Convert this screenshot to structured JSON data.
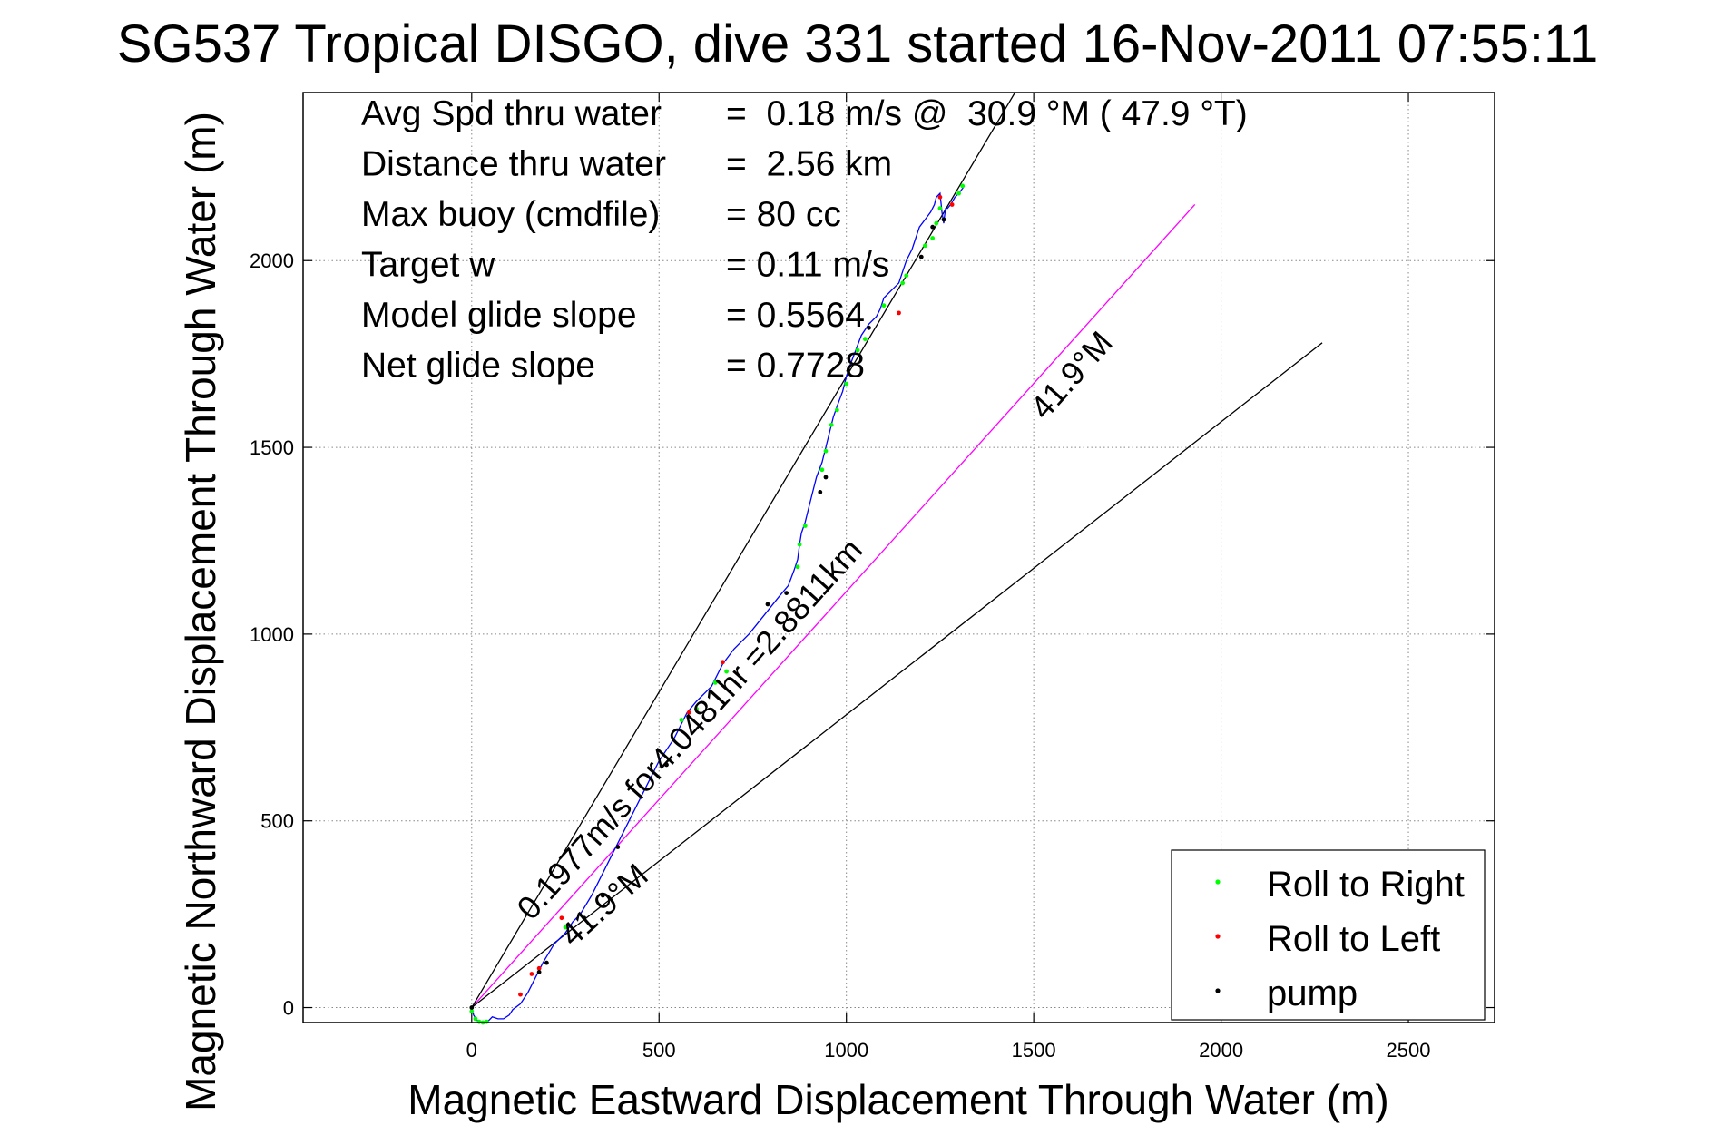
{
  "chart_data": {
    "type": "line",
    "title": "SG537 Tropical DISGO, dive 331 started 16-Nov-2011 07:55:11",
    "xlabel": "Magnetic Eastward Displacement Through Water (m)",
    "ylabel": "Magnetic Northward Displacement Through Water (m)",
    "xlim": [
      -450,
      2730
    ],
    "ylim": [
      -40,
      2450
    ],
    "grid": true,
    "xticks": [
      0,
      500,
      1000,
      1500,
      2000,
      2500
    ],
    "xtick_labels": [
      "0",
      "500",
      "1000",
      "1500",
      "2000",
      "2500"
    ],
    "yticks": [
      0,
      500,
      1000,
      1500,
      2000
    ],
    "ytick_labels": [
      "0",
      "500",
      "1000",
      "1500",
      "2000"
    ],
    "stats": [
      {
        "label": "Avg Spd thru water",
        "value": "=  0.18 m/s @  30.9 °M ( 47.9 °T)"
      },
      {
        "label": "Distance thru water",
        "value": "=  2.56 km"
      },
      {
        "label": "Max buoy (cmdfile)",
        "value": "= 80 cc"
      },
      {
        "label": "Target w",
        "value": "= 0.11 m/s"
      },
      {
        "label": "Model glide slope",
        "value": "= 0.5564"
      },
      {
        "label": "Net glide slope",
        "value": "= 0.7728"
      }
    ],
    "reference_lines": [
      {
        "x": [
          0,
          1930
        ],
        "y": [
          0,
          2150
        ],
        "color": "#ff00ff"
      },
      {
        "x": [
          0,
          1450
        ],
        "y": [
          0,
          2450
        ],
        "color": "#000000"
      },
      {
        "x": [
          0,
          2270
        ],
        "y": [
          0,
          1780
        ],
        "color": "#000000"
      }
    ],
    "annotations": [
      {
        "text": "0.1977m/s for4.0481hr =2.8811km",
        "x": 160,
        "y": 230,
        "angle": 48.1
      },
      {
        "text": "41.9°M",
        "x": 270,
        "y": 160,
        "angle": 41.9
      },
      {
        "text": "41.9°M",
        "x": 1530,
        "y": 1570,
        "angle": 48.1
      }
    ],
    "track": {
      "color": "#0000ff",
      "x": [
        0,
        5,
        15,
        30,
        45,
        55,
        70,
        85,
        100,
        110,
        130,
        150,
        170,
        190,
        220,
        250,
        270,
        290,
        320,
        350,
        380,
        420,
        460,
        500,
        540,
        575,
        600,
        640,
        670,
        700,
        740,
        780,
        820,
        845,
        860,
        870,
        875,
        880,
        890,
        900,
        910,
        920,
        935,
        945,
        955,
        965,
        975,
        990,
        1000,
        1010,
        1025,
        1040,
        1060,
        1080,
        1090,
        1100,
        1120,
        1140,
        1150,
        1160,
        1175,
        1185,
        1195,
        1210,
        1225,
        1235,
        1240,
        1250,
        1255,
        1260,
        1262,
        1265,
        1270,
        1278,
        1290,
        1300,
        1315
      ],
      "y": [
        0,
        -20,
        -35,
        -40,
        -35,
        -25,
        -30,
        -30,
        -20,
        -5,
        10,
        40,
        80,
        120,
        170,
        200,
        230,
        250,
        300,
        360,
        420,
        500,
        580,
        660,
        720,
        790,
        820,
        860,
        920,
        960,
        1000,
        1050,
        1100,
        1130,
        1170,
        1200,
        1240,
        1270,
        1300,
        1340,
        1380,
        1420,
        1460,
        1500,
        1540,
        1580,
        1610,
        1650,
        1690,
        1720,
        1760,
        1800,
        1830,
        1850,
        1870,
        1900,
        1920,
        1940,
        1970,
        2000,
        2030,
        2060,
        2090,
        2110,
        2130,
        2150,
        2170,
        2180,
        2130,
        2100,
        2120,
        2140,
        2140,
        2150,
        2170,
        2180,
        2200
      ]
    },
    "markers": {
      "roll_right": {
        "color": "#00ff00",
        "points": [
          [
            0,
            -10
          ],
          [
            10,
            -30
          ],
          [
            20,
            -38
          ],
          [
            30,
            -40
          ],
          [
            40,
            -38
          ],
          [
            250,
            215
          ],
          [
            560,
            770
          ],
          [
            600,
            800
          ],
          [
            650,
            870
          ],
          [
            680,
            900
          ],
          [
            870,
            1180
          ],
          [
            875,
            1240
          ],
          [
            890,
            1290
          ],
          [
            935,
            1440
          ],
          [
            945,
            1490
          ],
          [
            960,
            1560
          ],
          [
            975,
            1600
          ],
          [
            1000,
            1670
          ],
          [
            1030,
            1760
          ],
          [
            1050,
            1790
          ],
          [
            1100,
            1880
          ],
          [
            1150,
            1940
          ],
          [
            1160,
            1960
          ],
          [
            1210,
            2040
          ],
          [
            1230,
            2060
          ],
          [
            1240,
            2100
          ],
          [
            1250,
            2140
          ],
          [
            1300,
            2180
          ],
          [
            1310,
            2200
          ]
        ]
      },
      "roll_left": {
        "color": "#ff0000",
        "points": [
          [
            130,
            35
          ],
          [
            160,
            90
          ],
          [
            180,
            105
          ],
          [
            240,
            240
          ],
          [
            580,
            790
          ],
          [
            670,
            925
          ],
          [
            1140,
            1860
          ],
          [
            1250,
            2170
          ],
          [
            1282,
            2150
          ]
        ]
      },
      "pump": {
        "color": "#000000",
        "points": [
          [
            0,
            0
          ],
          [
            180,
            95
          ],
          [
            200,
            120
          ],
          [
            300,
            240
          ],
          [
            350,
            300
          ],
          [
            390,
            430
          ],
          [
            520,
            650
          ],
          [
            790,
            1080
          ],
          [
            840,
            1110
          ],
          [
            930,
            1380
          ],
          [
            945,
            1420
          ],
          [
            1060,
            1820
          ],
          [
            1200,
            2010
          ],
          [
            1230,
            2090
          ],
          [
            1260,
            2110
          ]
        ]
      }
    },
    "legend": {
      "position": "bottom-right",
      "entries": [
        {
          "label": "Roll to Right",
          "color": "#00ff00"
        },
        {
          "label": "Roll to Left",
          "color": "#ff0000"
        },
        {
          "label": "pump",
          "color": "#000000"
        }
      ]
    }
  }
}
